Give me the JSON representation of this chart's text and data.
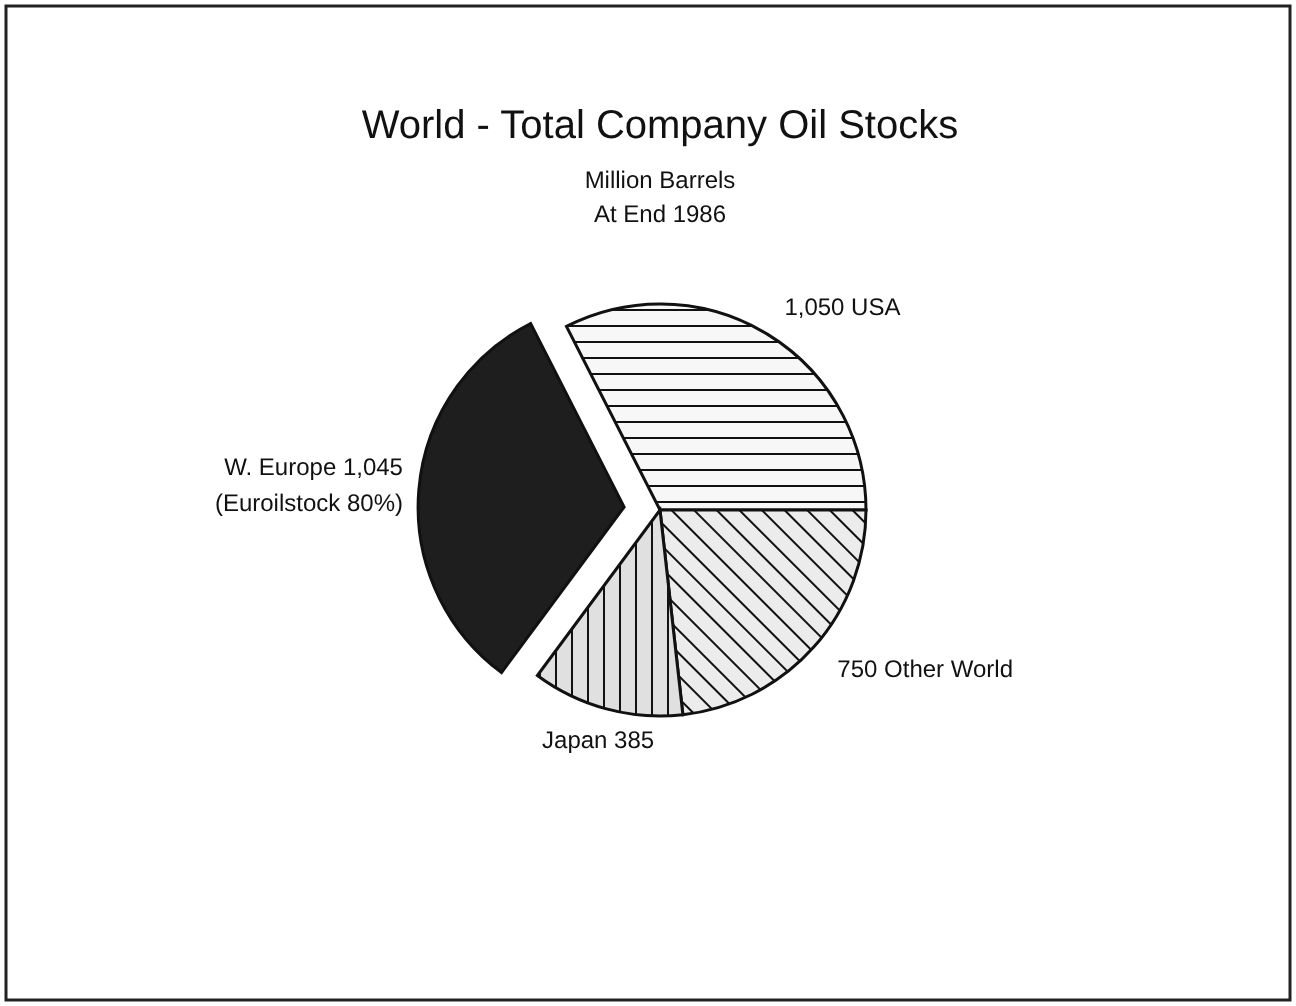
{
  "chart_data": {
    "type": "pie",
    "title": "World - Total Company Oil Stocks",
    "subtitle": "Million Barrels\nAt End 1986",
    "categories": [
      "USA",
      "Other World",
      "Japan",
      "W. Europe"
    ],
    "values": [
      1050,
      750,
      385,
      1045
    ],
    "value_labels": [
      "1,050",
      "750",
      "385",
      "1,045"
    ],
    "colors": [
      "#f7f7f7",
      "#ececec",
      "#e0e0e0",
      "#1e1e1e"
    ],
    "annotations": [
      "(Euroilstock 80%)"
    ]
  }
}
